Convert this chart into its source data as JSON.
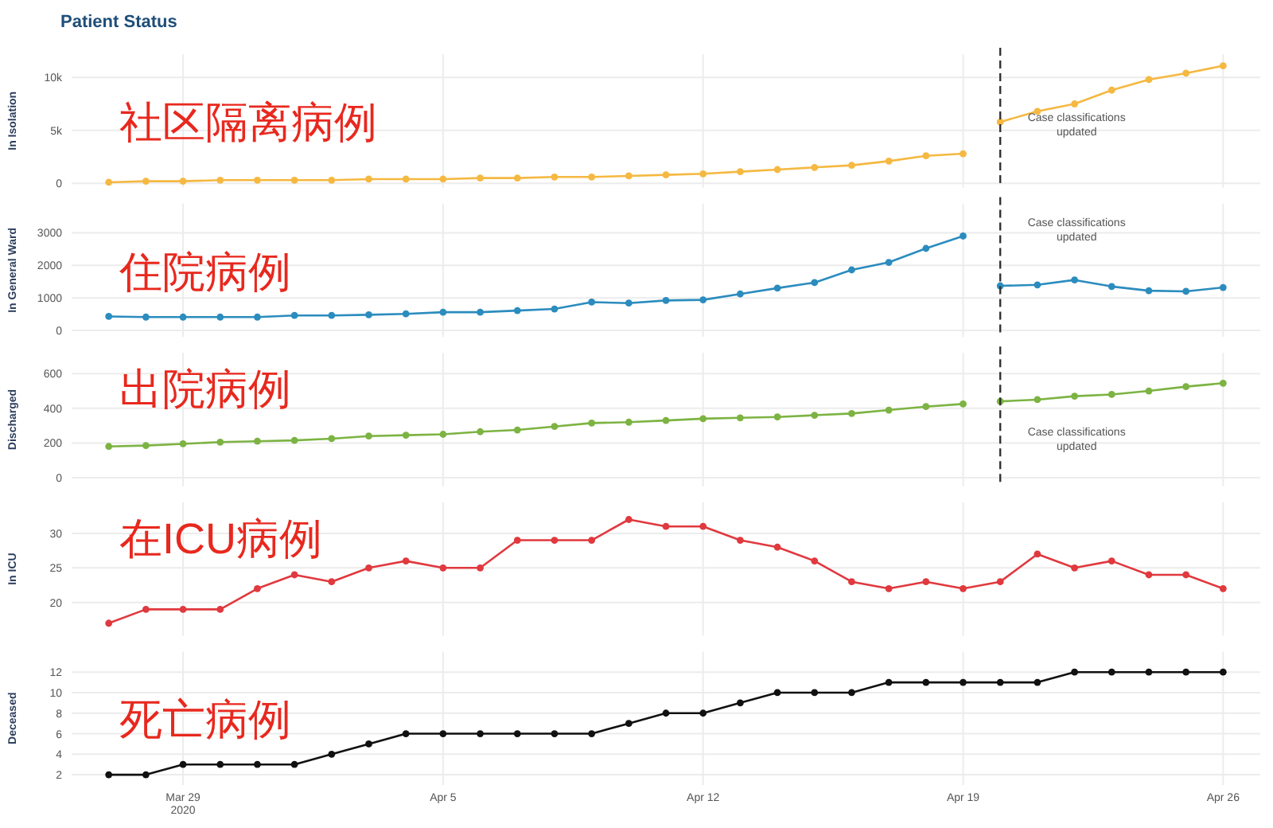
{
  "chart_data": [
    {
      "type": "line",
      "title": "Patient Status",
      "ylabel": "In Isolation",
      "annotations": [
        "社区隔离病例"
      ],
      "xlim": [
        "2020-03-26",
        "2020-04-27"
      ],
      "xticks": [
        {
          "value": "2020-03-29",
          "label": null
        },
        {
          "value": "2020-04-05",
          "label": null
        },
        {
          "value": "2020-04-12",
          "label": null
        },
        {
          "value": "2020-04-19",
          "label": null
        },
        {
          "value": "2020-04-26",
          "label": null
        }
      ],
      "ylim": [
        -400,
        12200
      ],
      "yticks": [
        0,
        {
          "value": 5000,
          "label": "5k"
        },
        {
          "value": 10000,
          "label": "10k"
        }
      ],
      "tick_labels": "y",
      "grid": true,
      "marker": "circle",
      "ref_lines": [
        {
          "axis": "x",
          "value": "2020-04-20",
          "label": "Case classifications updated",
          "line_style": "dashed"
        }
      ],
      "series": [
        {
          "color": "#f5b841",
          "x": [
            "2020-03-27",
            "2020-03-28",
            "2020-03-29",
            "2020-03-30",
            "2020-03-31",
            "2020-04-01",
            "2020-04-02",
            "2020-04-03",
            "2020-04-04",
            "2020-04-05",
            "2020-04-06",
            "2020-04-07",
            "2020-04-08",
            "2020-04-09",
            "2020-04-10",
            "2020-04-11",
            "2020-04-12",
            "2020-04-13",
            "2020-04-14",
            "2020-04-15",
            "2020-04-16",
            "2020-04-17",
            "2020-04-18",
            "2020-04-19"
          ],
          "values": [
            100,
            200,
            200,
            300,
            300,
            300,
            300,
            400,
            400,
            400,
            500,
            500,
            600,
            600,
            700,
            800,
            900,
            1100,
            1300,
            1500,
            1700,
            2100,
            2600,
            2800
          ]
        },
        {
          "color": "#f5b841",
          "x": [
            "2020-04-20",
            "2020-04-21",
            "2020-04-22",
            "2020-04-23",
            "2020-04-24",
            "2020-04-25",
            "2020-04-26"
          ],
          "values": [
            5800,
            6800,
            7500,
            8800,
            9800,
            10400,
            11100
          ]
        }
      ]
    },
    {
      "type": "line",
      "ylabel": "In General Ward",
      "annotations": [
        "住院病例"
      ],
      "xlim": [
        "2020-03-26",
        "2020-04-27"
      ],
      "xticks": [
        {
          "value": "2020-03-29",
          "label": null
        },
        {
          "value": "2020-04-05",
          "label": null
        },
        {
          "value": "2020-04-12",
          "label": null
        },
        {
          "value": "2020-04-19",
          "label": null
        },
        {
          "value": "2020-04-26",
          "label": null
        }
      ],
      "ylim": [
        -200,
        3900
      ],
      "yticks": [
        0,
        1000,
        2000,
        3000
      ],
      "tick_labels": "y",
      "grid": true,
      "marker": "circle",
      "ref_lines": [
        {
          "axis": "x",
          "value": "2020-04-20",
          "label": "Case classifications updated",
          "line_style": "dashed"
        }
      ],
      "series": [
        {
          "color": "#2b8cbe",
          "x": [
            "2020-03-27",
            "2020-03-28",
            "2020-03-29",
            "2020-03-30",
            "2020-03-31",
            "2020-04-01",
            "2020-04-02",
            "2020-04-03",
            "2020-04-04",
            "2020-04-05",
            "2020-04-06",
            "2020-04-07",
            "2020-04-08",
            "2020-04-09",
            "2020-04-10",
            "2020-04-11",
            "2020-04-12",
            "2020-04-13",
            "2020-04-14",
            "2020-04-15",
            "2020-04-16",
            "2020-04-17",
            "2020-04-18",
            "2020-04-19"
          ],
          "values": [
            430,
            410,
            410,
            410,
            410,
            460,
            460,
            480,
            510,
            560,
            560,
            610,
            660,
            870,
            840,
            920,
            940,
            1120,
            1300,
            1470,
            1860,
            2090,
            2520,
            2900
          ]
        },
        {
          "color": "#2b8cbe",
          "x": [
            "2020-04-20",
            "2020-04-21",
            "2020-04-22",
            "2020-04-23",
            "2020-04-24",
            "2020-04-25",
            "2020-04-26"
          ],
          "values": [
            1370,
            1400,
            1550,
            1350,
            1220,
            1200,
            1320
          ]
        }
      ]
    },
    {
      "type": "line",
      "ylabel": "Discharged",
      "annotations": [
        "出院病例"
      ],
      "xlim": [
        "2020-03-26",
        "2020-04-27"
      ],
      "xticks": [
        {
          "value": "2020-03-29",
          "label": null
        },
        {
          "value": "2020-04-05",
          "label": null
        },
        {
          "value": "2020-04-12",
          "label": null
        },
        {
          "value": "2020-04-19",
          "label": null
        },
        {
          "value": "2020-04-26",
          "label": null
        }
      ],
      "ylim": [
        -50,
        720
      ],
      "yticks": [
        0,
        200,
        400,
        600
      ],
      "tick_labels": "y",
      "grid": true,
      "marker": "circle",
      "ref_lines": [
        {
          "axis": "x",
          "value": "2020-04-20",
          "label": "Case classifications updated",
          "line_style": "dashed"
        }
      ],
      "series": [
        {
          "color": "#7cb342",
          "x": [
            "2020-03-27",
            "2020-03-28",
            "2020-03-29",
            "2020-03-30",
            "2020-03-31",
            "2020-04-01",
            "2020-04-02",
            "2020-04-03",
            "2020-04-04",
            "2020-04-05",
            "2020-04-06",
            "2020-04-07",
            "2020-04-08",
            "2020-04-09",
            "2020-04-10",
            "2020-04-11",
            "2020-04-12",
            "2020-04-13",
            "2020-04-14",
            "2020-04-15",
            "2020-04-16",
            "2020-04-17",
            "2020-04-18",
            "2020-04-19"
          ],
          "values": [
            180,
            185,
            195,
            205,
            210,
            215,
            225,
            240,
            245,
            250,
            265,
            275,
            295,
            315,
            320,
            330,
            340,
            345,
            350,
            360,
            370,
            390,
            410,
            425
          ]
        },
        {
          "color": "#7cb342",
          "x": [
            "2020-04-20",
            "2020-04-21",
            "2020-04-22",
            "2020-04-23",
            "2020-04-24",
            "2020-04-25",
            "2020-04-26"
          ],
          "values": [
            440,
            450,
            470,
            480,
            500,
            525,
            545
          ]
        }
      ]
    },
    {
      "type": "line",
      "ylabel": "In ICU",
      "annotations": [
        "在ICU病例"
      ],
      "xlim": [
        "2020-03-26",
        "2020-04-27"
      ],
      "xticks": [
        {
          "value": "2020-03-29",
          "label": null
        },
        {
          "value": "2020-04-05",
          "label": null
        },
        {
          "value": "2020-04-12",
          "label": null
        },
        {
          "value": "2020-04-19",
          "label": null
        },
        {
          "value": "2020-04-26",
          "label": null
        }
      ],
      "ylim": [
        15.2,
        34.5
      ],
      "yticks": [
        20,
        25,
        30
      ],
      "tick_labels": "y",
      "grid": true,
      "marker": "circle",
      "series": [
        {
          "color": "#e0393e",
          "x": [
            "2020-03-27",
            "2020-03-28",
            "2020-03-29",
            "2020-03-30",
            "2020-03-31",
            "2020-04-01",
            "2020-04-02",
            "2020-04-03",
            "2020-04-04",
            "2020-04-05",
            "2020-04-06",
            "2020-04-07",
            "2020-04-08",
            "2020-04-09",
            "2020-04-10",
            "2020-04-11",
            "2020-04-12",
            "2020-04-13",
            "2020-04-14",
            "2020-04-15",
            "2020-04-16",
            "2020-04-17",
            "2020-04-18",
            "2020-04-19",
            "2020-04-20",
            "2020-04-21",
            "2020-04-22",
            "2020-04-23",
            "2020-04-24",
            "2020-04-25",
            "2020-04-26"
          ],
          "values": [
            17,
            19,
            19,
            19,
            22,
            24,
            23,
            25,
            26,
            25,
            25,
            29,
            29,
            29,
            32,
            31,
            31,
            29,
            28,
            26,
            23,
            22,
            23,
            22,
            23,
            27,
            25,
            26,
            24,
            24,
            22
          ]
        }
      ]
    },
    {
      "type": "line",
      "ylabel": "Deceased",
      "annotations": [
        "死亡病例"
      ],
      "xlim": [
        "2020-03-26",
        "2020-04-27"
      ],
      "xticks": [
        {
          "value": "2020-03-29",
          "label": "Mar 29 2020"
        },
        {
          "value": "2020-04-05",
          "label": "Apr 5"
        },
        {
          "value": "2020-04-12",
          "label": "Apr 12"
        },
        {
          "value": "2020-04-19",
          "label": "Apr 19"
        },
        {
          "value": "2020-04-26",
          "label": "Apr 26"
        }
      ],
      "ylim": [
        1,
        14
      ],
      "yticks": [
        2,
        4,
        6,
        8,
        10,
        12
      ],
      "grid": true,
      "marker": "circle",
      "series": [
        {
          "color": "#111111",
          "x": [
            "2020-03-27",
            "2020-03-28",
            "2020-03-29",
            "2020-03-30",
            "2020-03-31",
            "2020-04-01",
            "2020-04-02",
            "2020-04-03",
            "2020-04-04",
            "2020-04-05",
            "2020-04-06",
            "2020-04-07",
            "2020-04-08",
            "2020-04-09",
            "2020-04-10",
            "2020-04-11",
            "2020-04-12",
            "2020-04-13",
            "2020-04-14",
            "2020-04-15",
            "2020-04-16",
            "2020-04-17",
            "2020-04-18",
            "2020-04-19",
            "2020-04-20",
            "2020-04-21",
            "2020-04-22",
            "2020-04-23",
            "2020-04-24",
            "2020-04-25",
            "2020-04-26"
          ],
          "values": [
            2,
            2,
            3,
            3,
            3,
            3,
            4,
            5,
            6,
            6,
            6,
            6,
            6,
            6,
            7,
            8,
            8,
            9,
            10,
            10,
            10,
            11,
            11,
            11,
            11,
            11,
            12,
            12,
            12,
            12,
            12
          ]
        }
      ]
    }
  ]
}
